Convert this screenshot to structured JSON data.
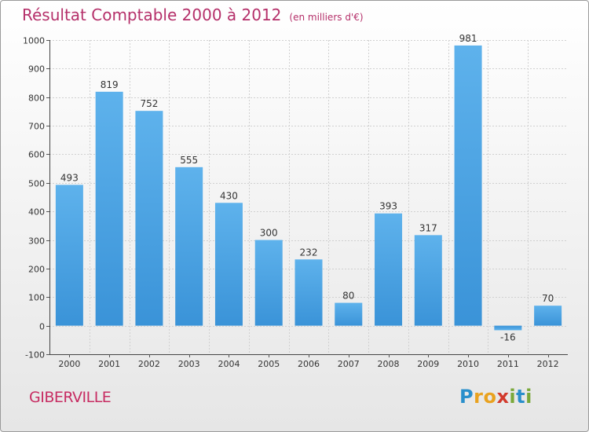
{
  "header": {
    "title": "Résultat Comptable 2000 à 2012",
    "subtitle": "(en milliers d'€)"
  },
  "place_name": "GIBERVILLE",
  "brand": {
    "letters": [
      "P",
      "r",
      "o",
      "x",
      "i",
      "t",
      "i"
    ],
    "colors": [
      "#2a8fcb",
      "#e9a21f",
      "#e9a21f",
      "#d23a2c",
      "#7aa83a",
      "#2a8fcb",
      "#7aa83a"
    ]
  },
  "chart_data": {
    "type": "bar",
    "categories": [
      "2000",
      "2001",
      "2002",
      "2003",
      "2004",
      "2005",
      "2006",
      "2007",
      "2008",
      "2009",
      "2010",
      "2011",
      "2012"
    ],
    "values": [
      493,
      819,
      752,
      555,
      430,
      300,
      232,
      80,
      393,
      317,
      981,
      -16,
      70
    ],
    "data_labels": [
      "493",
      "819",
      "752",
      "555",
      "430",
      "300",
      "232",
      "80",
      "393",
      "317",
      "981",
      "-16",
      "70"
    ],
    "ylim": [
      -100,
      1000
    ],
    "yticks": [
      -100,
      0,
      100,
      200,
      300,
      400,
      500,
      600,
      700,
      800,
      900,
      1000
    ],
    "grid": true,
    "bar_color": "#3a93d8",
    "bar_color_light": "#5eb2ec",
    "grid_color": "#d0d0d0"
  }
}
